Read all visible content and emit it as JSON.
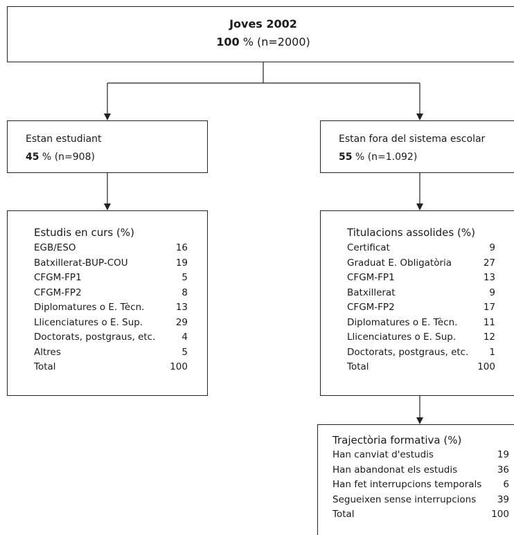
{
  "root": {
    "title": "Joves 2002",
    "percent": "100",
    "rest": " % (n=2000)"
  },
  "left": {
    "title": "Estan estudiant",
    "percent": "45",
    "rest": " % (n=908)",
    "list_title": "Estudis en curs (%)",
    "rows": [
      {
        "label": "EGB/ESO",
        "value": "16"
      },
      {
        "label": "Batxillerat-BUP-COU",
        "value": "19"
      },
      {
        "label": "CFGM-FP1",
        "value": "5"
      },
      {
        "label": "CFGM-FP2",
        "value": "8"
      },
      {
        "label": "Diplomatures o E. Tècn.",
        "value": "13"
      },
      {
        "label": "Llicenciatures o E. Sup.",
        "value": "29"
      },
      {
        "label": "Doctorats, postgraus, etc.",
        "value": "4"
      },
      {
        "label": "Altres",
        "value": "5"
      },
      {
        "label": "Total",
        "value": "100"
      }
    ]
  },
  "right": {
    "title": "Estan fora del sistema escolar",
    "percent": "55",
    "rest": " % (n=1.092)",
    "list_title": "Titulacions assolides (%)",
    "rows": [
      {
        "label": "Certificat",
        "value": "9"
      },
      {
        "label": "Graduat E. Obligatòria",
        "value": "27"
      },
      {
        "label": "CFGM-FP1",
        "value": "13"
      },
      {
        "label": "Batxillerat",
        "value": "9"
      },
      {
        "label": "CFGM-FP2",
        "value": "17"
      },
      {
        "label": "Diplomatures o E. Tècn.",
        "value": "11"
      },
      {
        "label": "Llicenciatures o E. Sup.",
        "value": "12"
      },
      {
        "label": "Doctorats, postgraus, etc.",
        "value": "1"
      },
      {
        "label": "Total",
        "value": "100"
      }
    ]
  },
  "trajectory": {
    "list_title": "Trajectòria formativa (%)",
    "rows": [
      {
        "label": "Han canviat d'estudis",
        "value": "19"
      },
      {
        "label": "Han abandonat els estudis",
        "value": "36"
      },
      {
        "label": "Han fet interrupcions temporals",
        "value": "6"
      },
      {
        "label": "Segueixen sense interrupcions",
        "value": "39"
      },
      {
        "label": "Total",
        "value": "100"
      }
    ]
  }
}
